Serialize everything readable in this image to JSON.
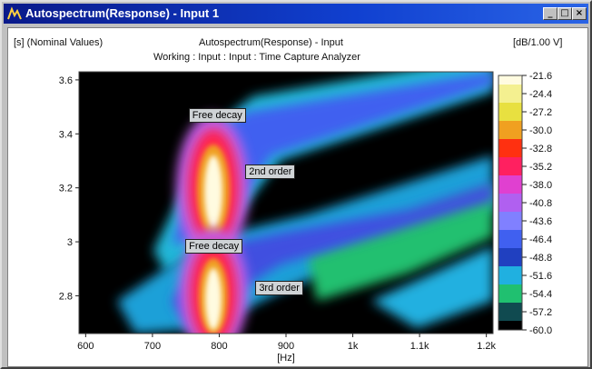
{
  "window": {
    "title": "Autospectrum(Response) - Input 1",
    "controls": {
      "minimize": "_",
      "maximize": "□",
      "close": "×"
    }
  },
  "chart_data": {
    "type": "heatmap",
    "y_unit_label": "[s] (Nominal Values)",
    "title": "Autospectrum(Response) - Input",
    "subtitle": "Working : Input : Input : Time Capture Analyzer",
    "colorbar_unit": "[dB/1.00 V]",
    "xlabel": "[Hz]",
    "x_ticks": [
      "600",
      "700",
      "800",
      "900",
      "1k",
      "1.1k",
      "1.2k"
    ],
    "x_tick_values": [
      600,
      700,
      800,
      900,
      1000,
      1100,
      1200
    ],
    "xlim": [
      590,
      1210
    ],
    "y_ticks": [
      "3.6",
      "3.4",
      "3.2",
      "3",
      "2.8"
    ],
    "y_tick_values": [
      3.6,
      3.4,
      3.2,
      3.0,
      2.8
    ],
    "ylim": [
      2.66,
      3.63
    ],
    "colorbar_ticks": [
      "-21.6",
      "-24.4",
      "-27.2",
      "-30.0",
      "-32.8",
      "-35.2",
      "-38.0",
      "-40.8",
      "-43.6",
      "-46.4",
      "-48.8",
      "-51.6",
      "-54.4",
      "-57.2",
      "-60.0"
    ],
    "colorbar_colors": [
      "#fffbe0",
      "#f4f090",
      "#e8e040",
      "#f0a020",
      "#ff3010",
      "#ff2060",
      "#e040d0",
      "#b060f0",
      "#8080ff",
      "#4060f0",
      "#2040c0",
      "#20b0e0",
      "#20c070",
      "#104a50",
      "#000000"
    ],
    "annotations": [
      {
        "label": "Free decay",
        "freq": 795,
        "time": 3.47
      },
      {
        "label": "2nd order",
        "freq": 880,
        "time": 3.26
      },
      {
        "label": "Free decay",
        "freq": 790,
        "time": 2.985
      },
      {
        "label": "3rd order",
        "freq": 895,
        "time": 2.83
      }
    ]
  }
}
